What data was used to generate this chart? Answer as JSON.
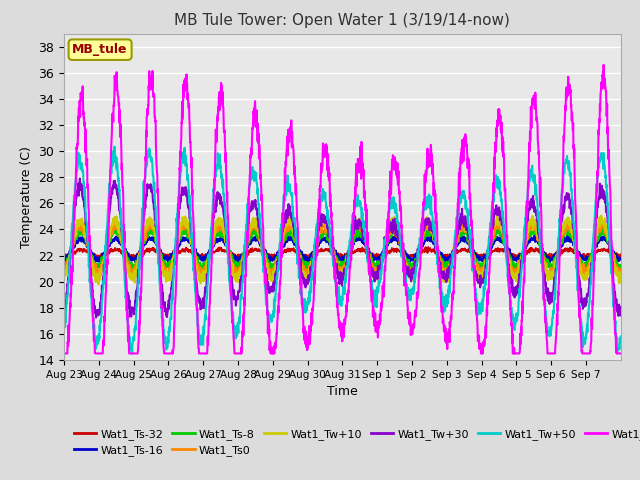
{
  "title": "MB Tule Tower: Open Water 1 (3/19/14-now)",
  "xlabel": "Time",
  "ylabel": "Temperature (C)",
  "ylim": [
    14,
    39
  ],
  "yticks": [
    14,
    16,
    18,
    20,
    22,
    24,
    26,
    28,
    30,
    32,
    34,
    36,
    38
  ],
  "bg_color": "#dcdcdc",
  "plot_bg": "#e8e8e8",
  "series": {
    "Wat1_Ts-32": {
      "color": "#cc0000",
      "lw": 1.2
    },
    "Wat1_Ts-16": {
      "color": "#0000cc",
      "lw": 1.5
    },
    "Wat1_Ts-8": {
      "color": "#00cc00",
      "lw": 1.5
    },
    "Wat1_Ts0": {
      "color": "#ff8800",
      "lw": 1.5
    },
    "Wat1_Tw+10": {
      "color": "#cccc00",
      "lw": 1.5
    },
    "Wat1_Tw+30": {
      "color": "#8800cc",
      "lw": 1.5
    },
    "Wat1_Tw+50": {
      "color": "#00cccc",
      "lw": 1.5
    },
    "Wat1_Tw100": {
      "color": "#ff00ff",
      "lw": 1.5
    }
  },
  "annotation_box": {
    "text": "MB_tule",
    "color": "#990000",
    "bg": "#ffff99",
    "border": "#999900"
  },
  "x_ticks": [
    0,
    1,
    2,
    3,
    4,
    5,
    6,
    7,
    8,
    9,
    10,
    11,
    12,
    13,
    14,
    15
  ],
  "x_tick_labels": [
    "Aug 23",
    "Aug 24",
    "Aug 25",
    "Aug 26",
    "Aug 27",
    "Aug 28",
    "Aug 29",
    "Aug 30",
    "Aug 31",
    "Sep 1",
    "Sep 2",
    "Sep 3",
    "Sep 4",
    "Sep 5",
    "Sep 6",
    "Sep 7"
  ]
}
